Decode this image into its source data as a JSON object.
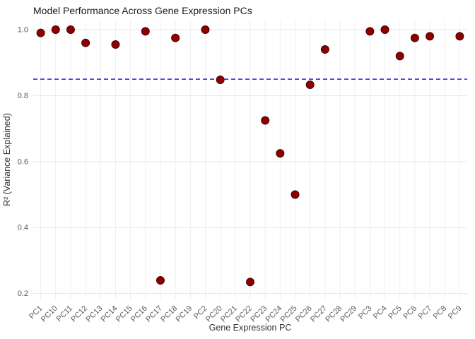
{
  "chart_data": {
    "type": "scatter",
    "title": "Model Performance Across Gene Expression PCs",
    "xlabel": "Gene Expression PC",
    "ylabel": "R² (Variance Explained)",
    "categories": [
      "PC1",
      "PC10",
      "PC11",
      "PC12",
      "PC13",
      "PC14",
      "PC15",
      "PC16",
      "PC17",
      "PC18",
      "PC19",
      "PC2",
      "PC20",
      "PC21",
      "PC22",
      "PC23",
      "PC24",
      "PC25",
      "PC26",
      "PC27",
      "PC28",
      "PC29",
      "PC3",
      "PC4",
      "PC5",
      "PC6",
      "PC7",
      "PC8",
      "PC9"
    ],
    "values": [
      0.99,
      1.0,
      1.0,
      0.96,
      null,
      0.955,
      null,
      0.995,
      0.24,
      0.975,
      null,
      1.0,
      0.848,
      null,
      0.235,
      0.725,
      0.625,
      0.5,
      0.833,
      0.94,
      null,
      null,
      0.995,
      1.0,
      0.92,
      0.975,
      0.98,
      null,
      0.98
    ],
    "yticks": [
      "0.2",
      "0.4",
      "0.6",
      "0.8",
      "1.0"
    ],
    "ylim": [
      0.18,
      1.03
    ],
    "threshold_line": {
      "y": 0.85,
      "color": "#2323e8",
      "style": "dashed"
    },
    "point_color": "#8B0000",
    "point_stroke": "#4d0000",
    "grid": true,
    "legend": "none",
    "colors": {
      "grid_h": "#e7e7e7",
      "grid_v": "#efefef",
      "tick_text": "#5b5b5b",
      "axis_title": "#333333",
      "title": "#1a1a1a",
      "background": "#ffffff"
    }
  }
}
